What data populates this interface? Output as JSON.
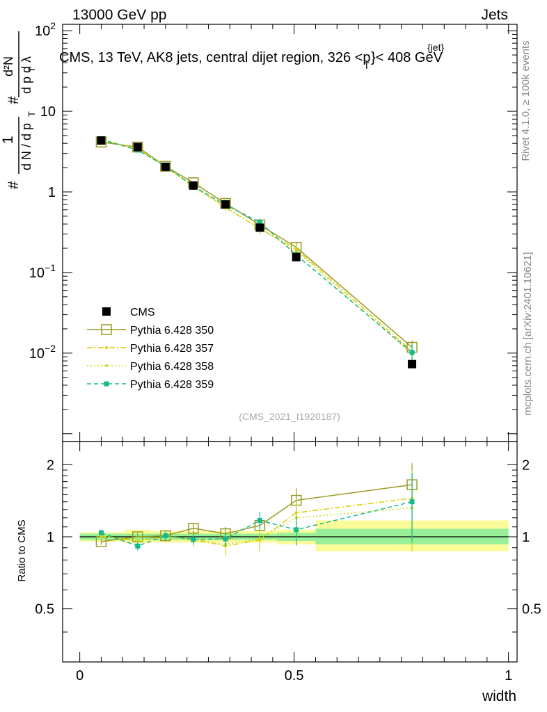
{
  "header": {
    "left": "13000 GeV pp",
    "right": "Jets"
  },
  "side_labels": {
    "rivet": "Rivet 4.1.0, ≥ 100k events",
    "mcplots": "mcplots.cern.ch [arXiv:2401.10621]"
  },
  "main_plot": {
    "title": "CMS, 13 TeV, AK8 jets, central dijet region, 326 <p",
    "title_sup": "{jet}",
    "title_sub": "T",
    "title_tail": "}< 408 GeV",
    "analysis_id": "(CMS_2021_I1920187)",
    "ylabel": "# 1/(dN/dpT) # d²N/(dpT dλ)"
  },
  "ratio_plot": {
    "ylabel": "Ratio to CMS"
  },
  "colors": {
    "cms": "#000000",
    "p350": "#9a9a1f",
    "p357": "#e0cc00",
    "p358": "#c8dc1e",
    "p359": "#14b98c",
    "band_inner": "#99f099",
    "band_outer": "#fbfb9a"
  },
  "chart_data": [
    {
      "type": "line",
      "title": "CMS, 13 TeV, AK8 jets, central dijet region, 326 < pT(jet) < 408 GeV",
      "xlabel": "width",
      "ylabel": "1/(dN/dpT) d²N/(dpT dλ)",
      "xlim": [
        -0.04,
        1.02
      ],
      "ylim": [
        0.0008,
        120
      ],
      "yscale": "log",
      "x_ticks": [
        "0",
        "0.5",
        "1"
      ],
      "y_ticks": [
        "10⁻²",
        "10⁻¹",
        "1",
        "10",
        "10²"
      ],
      "x": [
        0.05,
        0.135,
        0.2,
        0.265,
        0.34,
        0.42,
        0.505,
        0.775
      ],
      "series": [
        {
          "name": "CMS",
          "marker": "filled-square",
          "values": [
            4.35,
            3.6,
            2.05,
            1.2,
            0.7,
            0.36,
            0.155,
            0.0073
          ],
          "errors": [
            0.2,
            0.15,
            0.08,
            0.06,
            0.04,
            0.025,
            0.012,
            0.0006
          ]
        },
        {
          "name": "Pythia 6.428 350",
          "marker": "open-square",
          "line": "solid",
          "values": [
            4.15,
            3.6,
            2.08,
            1.3,
            0.72,
            0.39,
            0.205,
            0.0118
          ],
          "errors": [
            0.1,
            0.1,
            0.07,
            0.06,
            0.05,
            0.04,
            0.025,
            0.0025
          ]
        },
        {
          "name": "Pythia 6.428 357",
          "marker": "dot",
          "line": "dashdot",
          "values": [
            4.4,
            3.45,
            2.05,
            1.18,
            0.64,
            0.35,
            0.195,
            0.0105
          ],
          "errors": [
            0.1,
            0.1,
            0.07,
            0.06,
            0.06,
            0.05,
            0.025,
            0.003
          ]
        },
        {
          "name": "Pythia 6.428 358",
          "marker": "dot",
          "line": "dotted",
          "values": [
            4.4,
            3.45,
            2.08,
            1.15,
            0.65,
            0.35,
            0.185,
            0.0097
          ],
          "errors": [
            0.1,
            0.1,
            0.07,
            0.06,
            0.05,
            0.05,
            0.025,
            0.003
          ]
        },
        {
          "name": "Pythia 6.428 359",
          "marker": "small-filled-square",
          "line": "dashed",
          "values": [
            4.5,
            3.3,
            2.08,
            1.18,
            0.69,
            0.42,
            0.165,
            0.0102
          ],
          "errors": [
            0.1,
            0.1,
            0.07,
            0.06,
            0.05,
            0.05,
            0.02,
            0.003
          ]
        }
      ],
      "legend": "bottom-left"
    },
    {
      "type": "line",
      "title": "",
      "xlabel": "width",
      "ylabel": "Ratio to CMS",
      "xlim": [
        -0.04,
        1.02
      ],
      "ylim": [
        0.3,
        2.5
      ],
      "yscale": "log",
      "y_ticks": [
        "0.5",
        "1",
        "2"
      ],
      "bands": [
        {
          "x_range": [
            0.0,
            0.105
          ],
          "inner": [
            0.97,
            1.03
          ],
          "outer": [
            0.955,
            1.045
          ]
        },
        {
          "x_range": [
            0.105,
            0.165
          ],
          "inner": [
            0.97,
            1.03
          ],
          "outer": [
            0.94,
            1.07
          ]
        },
        {
          "x_range": [
            0.165,
            0.235
          ],
          "inner": [
            0.97,
            1.03
          ],
          "outer": [
            0.945,
            1.055
          ]
        },
        {
          "x_range": [
            0.235,
            0.3
          ],
          "inner": [
            0.97,
            1.03
          ],
          "outer": [
            0.945,
            1.055
          ]
        },
        {
          "x_range": [
            0.3,
            0.38
          ],
          "inner": [
            0.97,
            1.03
          ],
          "outer": [
            0.945,
            1.055
          ]
        },
        {
          "x_range": [
            0.38,
            0.46
          ],
          "inner": [
            0.97,
            1.03
          ],
          "outer": [
            0.945,
            1.055
          ]
        },
        {
          "x_range": [
            0.46,
            0.55
          ],
          "inner": [
            0.96,
            1.04
          ],
          "outer": [
            0.93,
            1.07
          ]
        },
        {
          "x_range": [
            0.55,
            1.0
          ],
          "inner": [
            0.93,
            1.08
          ],
          "outer": [
            0.87,
            1.17
          ]
        }
      ],
      "series": [
        {
          "name": "Pythia 6.428 350",
          "values": [
            0.955,
            1.0,
            1.01,
            1.085,
            1.03,
            1.115,
            1.42,
            1.65
          ],
          "errors": [
            0.03,
            0.04,
            0.05,
            0.05,
            0.07,
            0.1,
            0.18,
            0.38
          ]
        },
        {
          "name": "Pythia 6.428 357",
          "values": [
            1.01,
            0.96,
            1.0,
            0.98,
            0.915,
            0.97,
            1.26,
            1.45
          ],
          "errors": [
            0.03,
            0.04,
            0.05,
            0.05,
            0.08,
            0.1,
            0.18,
            0.45
          ]
        },
        {
          "name": "Pythia 6.428 358",
          "values": [
            1.01,
            0.96,
            1.01,
            0.96,
            0.93,
            0.98,
            1.2,
            1.32
          ],
          "errors": [
            0.03,
            0.04,
            0.05,
            0.05,
            0.07,
            0.1,
            0.18,
            0.45
          ]
        },
        {
          "name": "Pythia 6.428 359",
          "values": [
            1.04,
            0.915,
            1.01,
            0.975,
            0.98,
            1.17,
            1.07,
            1.4
          ],
          "errors": [
            0.03,
            0.04,
            0.05,
            0.05,
            0.07,
            0.1,
            0.15,
            0.45
          ]
        }
      ]
    }
  ]
}
